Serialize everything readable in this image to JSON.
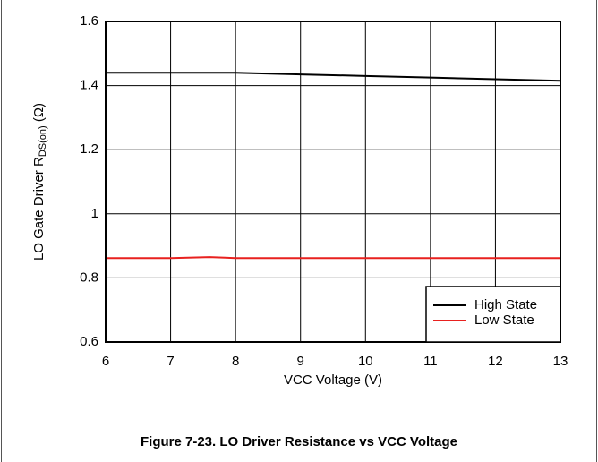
{
  "chart_data": {
    "type": "line",
    "caption": "Figure 7-23. LO Driver Resistance vs VCC Voltage",
    "xlabel": "VCC Voltage (V)",
    "ylabel": [
      "LO Gate Driver R",
      "DS(on)",
      " (Ω)"
    ],
    "xlim": [
      6,
      13
    ],
    "xticks": [
      6,
      7,
      8,
      9,
      10,
      11,
      12,
      13
    ],
    "ylim": [
      0.6,
      1.6
    ],
    "yticks": [
      0.6,
      0.8,
      1,
      1.2,
      1.4,
      1.6
    ],
    "grid": true,
    "legend": "lower right",
    "series": [
      {
        "name": "High State",
        "color": "#000000",
        "x": [
          6,
          7,
          8,
          9,
          10,
          11,
          12,
          13
        ],
        "values": [
          1.44,
          1.44,
          1.44,
          1.435,
          1.43,
          1.425,
          1.42,
          1.415
        ]
      },
      {
        "name": "Low State",
        "color": "#e8211f",
        "x": [
          6,
          7,
          7.6,
          8,
          9,
          10,
          11,
          12,
          13
        ],
        "values": [
          0.862,
          0.862,
          0.865,
          0.862,
          0.862,
          0.862,
          0.862,
          0.862,
          0.862
        ]
      }
    ]
  }
}
